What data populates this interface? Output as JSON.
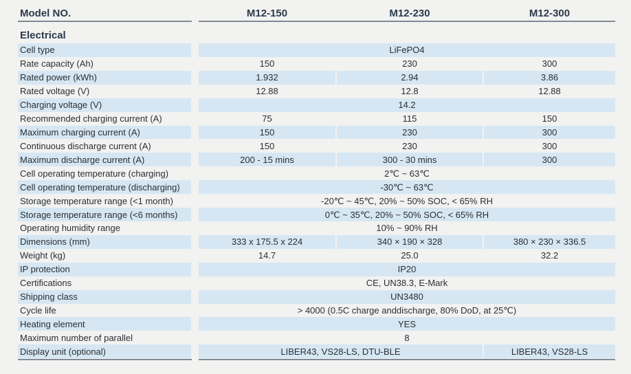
{
  "header": {
    "model_label": "Model NO.",
    "models": [
      "M12-150",
      "M12-230",
      "M12-300"
    ]
  },
  "section_title": "Electrical",
  "colors": {
    "band": "#d6e7f3",
    "background": "#f2f2f1",
    "heading": "#2b3a4a"
  },
  "rows": [
    {
      "label": "Cell type",
      "merged": "LiFePO4"
    },
    {
      "label": "Rate capacity (Ah)",
      "values": [
        "150",
        "230",
        "300"
      ]
    },
    {
      "label": "Rated power (kWh)",
      "values": [
        "1.932",
        "2.94",
        "3.86"
      ]
    },
    {
      "label": "Rated voltage (V)",
      "values": [
        "12.88",
        "12.8",
        "12.88"
      ]
    },
    {
      "label": "Charging voltage (V)",
      "merged": "14.2"
    },
    {
      "label": "Recommended charging current (A)",
      "values": [
        "75",
        "115",
        "150"
      ]
    },
    {
      "label": "Maximum charging current (A)",
      "values": [
        "150",
        "230",
        "300"
      ]
    },
    {
      "label": "Continuous discharge current (A)",
      "values": [
        "150",
        "230",
        "300"
      ]
    },
    {
      "label": "Maximum discharge current (A)",
      "values": [
        "200 - 15 mins",
        "300 - 30 mins",
        "300"
      ]
    },
    {
      "label": "Cell operating temperature (charging)",
      "merged": "2℃ ~ 63℃"
    },
    {
      "label": "Cell operating temperature (discharging)",
      "merged": "-30℃ ~ 63℃"
    },
    {
      "label": "Storage temperature range (<1 month)",
      "merged": "-20℃ ~ 45℃, 20% ~ 50% SOC, < 65% RH"
    },
    {
      "label": "Storage temperature range (<6 months)",
      "merged": "0℃ ~ 35℃, 20% ~ 50% SOC,  < 65% RH"
    },
    {
      "label": "Operating humidity range",
      "merged": "10% ~ 90% RH"
    },
    {
      "label": "Dimensions (mm)",
      "values": [
        "333 x 175.5 x 224",
        "340 × 190 × 328",
        "380 × 230 × 336.5"
      ]
    },
    {
      "label": "Weight (kg)",
      "values": [
        "14.7",
        "25.0",
        "32.2"
      ]
    },
    {
      "label": "IP protection",
      "merged": "IP20"
    },
    {
      "label": "Certifications",
      "merged": "CE, UN38.3, E-Mark"
    },
    {
      "label": "Shipping class",
      "merged": "UN3480"
    },
    {
      "label": "Cycle life",
      "merged": "> 4000 (0.5C charge anddischarge, 80% DoD, at 25℃)"
    },
    {
      "label": "Heating element",
      "merged": "YES"
    },
    {
      "label": "Maximum number of parallel",
      "merged": "8"
    },
    {
      "label": "Display unit (optional)",
      "pair": [
        "LIBER43, VS28-LS, DTU-BLE",
        "LIBER43, VS28-LS"
      ]
    }
  ]
}
